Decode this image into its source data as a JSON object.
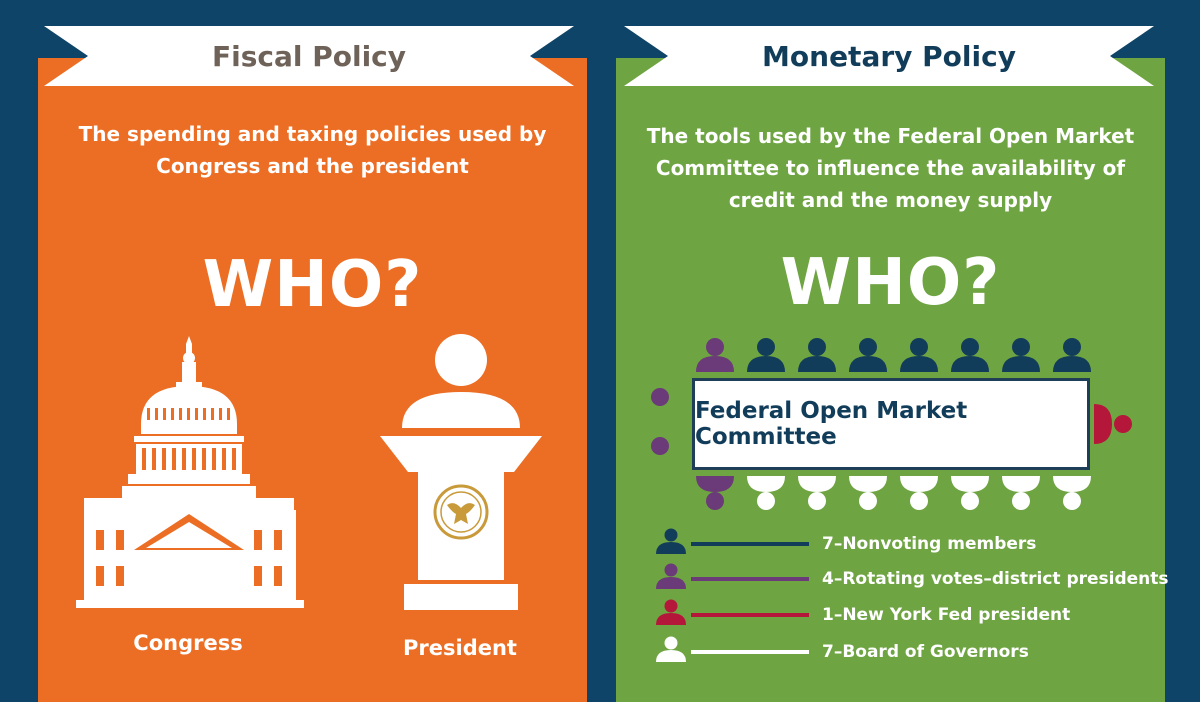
{
  "fiscal": {
    "title": "Fiscal Policy",
    "description_line1": "The spending and taxing policies used by",
    "description_line2": "Congress and the president",
    "who": "WHO?",
    "congress_label": "Congress",
    "president_label": "President"
  },
  "monetary": {
    "title": "Monetary Policy",
    "description_line1": "The tools used by the Federal Open Market",
    "description_line2": "Committee to influence the availability of",
    "description_line3": "credit and the money supply",
    "who": "WHO?",
    "committee_label": "Federal Open Market Committee",
    "legend": [
      {
        "label": "7–Nonvoting members",
        "color": "#123d5a"
      },
      {
        "label": "4–Rotating votes–district presidents",
        "color": "#6b3a78"
      },
      {
        "label": "1–New York Fed president",
        "color": "#b5173b"
      },
      {
        "label": "7–Board of Governors",
        "color": "#ffffff"
      }
    ]
  },
  "colors": {
    "background": "#0e4468",
    "fiscal_panel": "#ec6e24",
    "monetary_panel": "#6fa442",
    "banner": "#ffffff",
    "seal_gold": "#c89a3a"
  }
}
